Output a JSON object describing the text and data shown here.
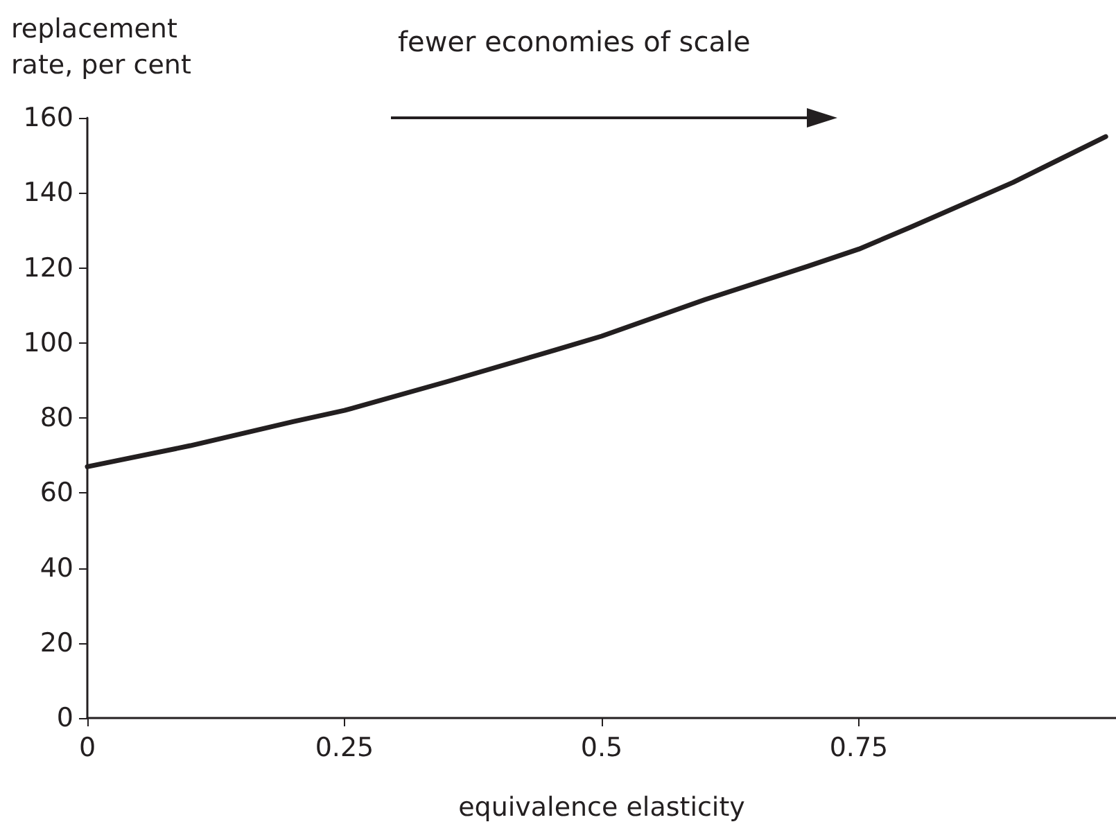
{
  "chart_data": {
    "type": "line",
    "ylabel": "replacement rate, per cent",
    "xlabel": "equivalence elasticity",
    "annotations": [
      "fewer economies of scale"
    ],
    "x": [
      0,
      0.1,
      0.2,
      0.25,
      0.35,
      0.45,
      0.5,
      0.6,
      0.7,
      0.75,
      0.8,
      0.9,
      0.99
    ],
    "series": [
      {
        "color": "#231f20",
        "values": [
          67,
          72.6,
          79,
          82,
          89.7,
          97.7,
          101.8,
          111.5,
          120.4,
          125,
          130.8,
          142.8,
          155
        ]
      }
    ],
    "xlim": [
      0,
      1
    ],
    "xticks": [
      0,
      0.25,
      0.5,
      0.75
    ],
    "ylim": [
      0,
      160
    ],
    "yticks": [
      0,
      20,
      40,
      60,
      80,
      100,
      120,
      140,
      160
    ],
    "marker": "none",
    "line_style": "solid"
  }
}
